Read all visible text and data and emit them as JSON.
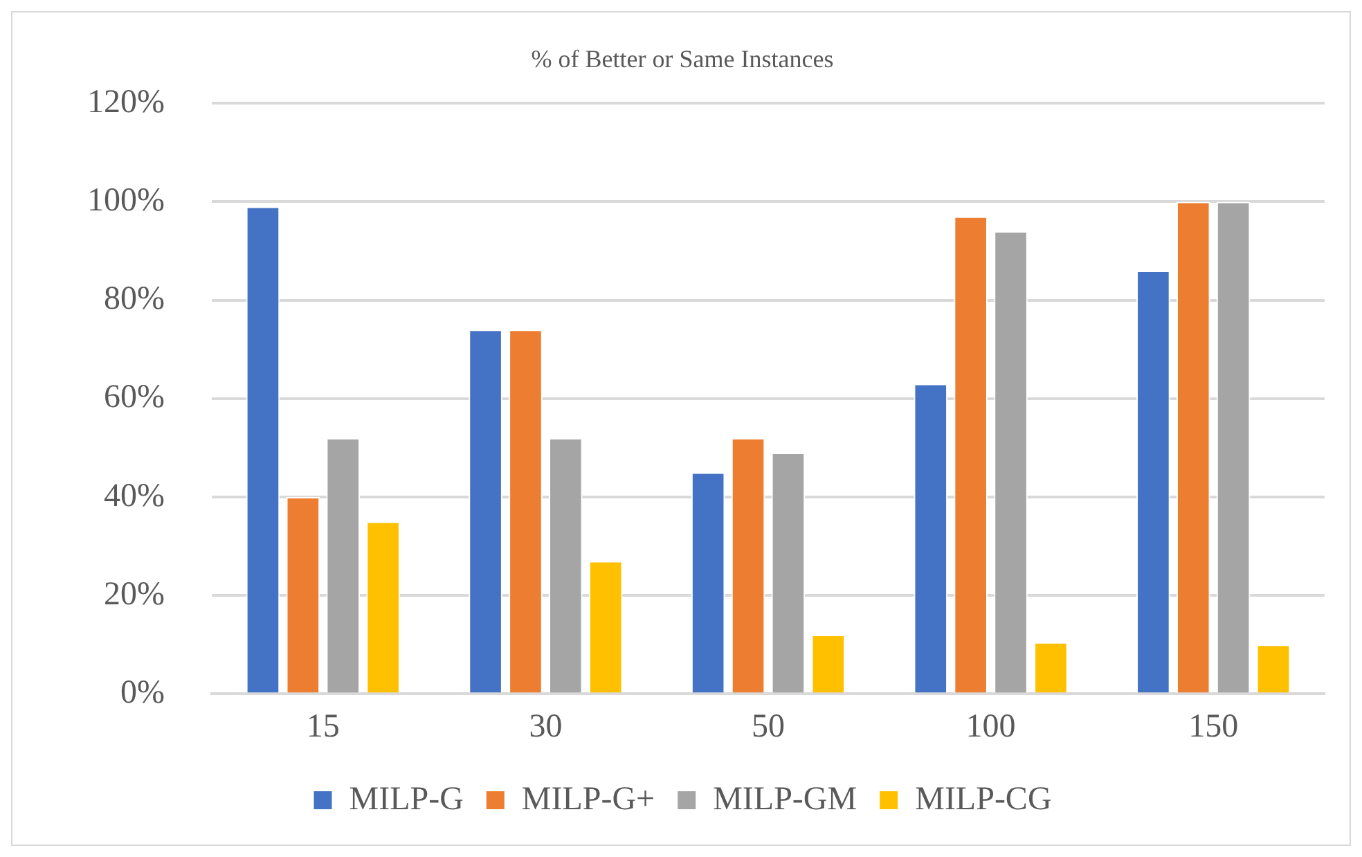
{
  "chart_data": {
    "type": "bar",
    "title": "% of Better or Same Instances",
    "categories": [
      "15",
      "30",
      "50",
      "100",
      "150"
    ],
    "series": [
      {
        "name": "MILP-G",
        "color": "#4472c4",
        "values": [
          99,
          74,
          45,
          63,
          86
        ]
      },
      {
        "name": "MILP-G+",
        "color": "#ed7d31",
        "values": [
          40,
          74,
          52,
          97,
          100
        ]
      },
      {
        "name": "MILP-GM",
        "color": "#a5a5a5",
        "values": [
          52,
          52,
          49,
          94,
          100
        ]
      },
      {
        "name": "MILP-CG",
        "color": "#ffc000",
        "values": [
          35,
          27,
          12,
          10.5,
          10
        ]
      }
    ],
    "ylim": [
      0,
      120
    ],
    "yticks": [
      {
        "value": 0,
        "label": "0%"
      },
      {
        "value": 20,
        "label": "20%"
      },
      {
        "value": 40,
        "label": "40%"
      },
      {
        "value": 60,
        "label": "60%"
      },
      {
        "value": 80,
        "label": "80%"
      },
      {
        "value": 100,
        "label": "100%"
      },
      {
        "value": 120,
        "label": "120%"
      }
    ],
    "grid": "y",
    "legend": "bottom"
  }
}
